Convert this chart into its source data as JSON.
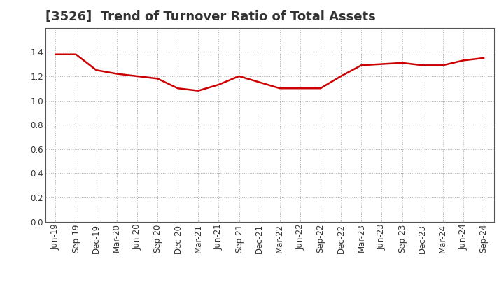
{
  "title": "[3526]  Trend of Turnover Ratio of Total Assets",
  "labels": [
    "Jun-19",
    "Sep-19",
    "Dec-19",
    "Mar-20",
    "Jun-20",
    "Sep-20",
    "Dec-20",
    "Mar-21",
    "Jun-21",
    "Sep-21",
    "Dec-21",
    "Mar-22",
    "Jun-22",
    "Sep-22",
    "Dec-22",
    "Mar-23",
    "Jun-23",
    "Sep-23",
    "Dec-23",
    "Mar-24",
    "Jun-24",
    "Sep-24"
  ],
  "values": [
    1.38,
    1.38,
    1.25,
    1.22,
    1.2,
    1.18,
    1.1,
    1.08,
    1.13,
    1.2,
    1.15,
    1.1,
    1.1,
    1.1,
    1.2,
    1.29,
    1.3,
    1.31,
    1.29,
    1.29,
    1.33,
    1.35
  ],
  "line_color": "#cc0000",
  "line_width": 1.8,
  "ylim": [
    0.0,
    1.6
  ],
  "yticks": [
    0.0,
    0.2,
    0.4,
    0.6,
    0.8,
    1.0,
    1.2,
    1.4
  ],
  "background_color": "#ffffff",
  "plot_bg_color": "#ffffff",
  "grid_color": "#aaaaaa",
  "title_fontsize": 13,
  "tick_fontsize": 8.5,
  "title_color": "#333333"
}
